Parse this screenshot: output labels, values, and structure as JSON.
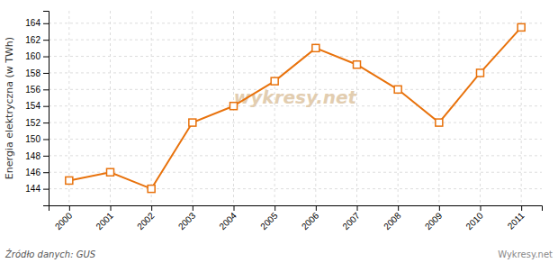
{
  "chart_data": {
    "type": "line",
    "ylabel": "Energia elektryczna (w TWh)",
    "x": [
      2000,
      2001,
      2002,
      2003,
      2004,
      2005,
      2006,
      2007,
      2008,
      2009,
      2010,
      2011
    ],
    "values": [
      145.0,
      146.0,
      144.0,
      152.0,
      154.0,
      157.0,
      161.0,
      159.0,
      156.0,
      152.0,
      158.0,
      163.5
    ],
    "color": "#e8720c",
    "marker": "square",
    "xlim": [
      1999.5,
      2011.5
    ],
    "xticks": [
      2000,
      2001,
      2002,
      2003,
      2004,
      2005,
      2006,
      2007,
      2008,
      2009,
      2010,
      2011
    ],
    "ylim": [
      142,
      165.5
    ],
    "yticks": [
      144,
      146,
      148,
      150,
      152,
      154,
      156,
      158,
      160,
      162,
      164
    ],
    "grid": true,
    "annotations": [
      "wykresy.net",
      "Źródło danych:  GUS",
      "Wykresy.net"
    ]
  }
}
